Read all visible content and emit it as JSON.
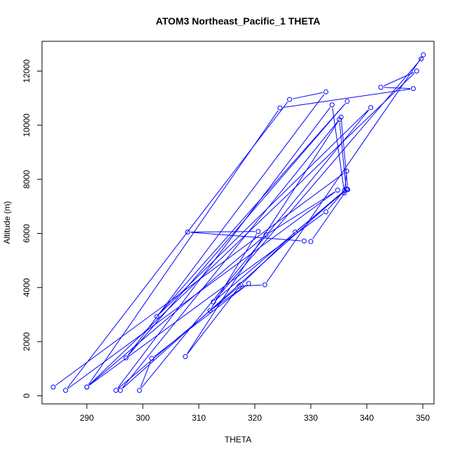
{
  "chart_data": {
    "type": "line",
    "title": "ATOM3 Northeast_Pacific_1 THETA",
    "xlabel": "THETA",
    "ylabel": "Altitude (m)",
    "xlim": [
      282,
      352
    ],
    "ylim": [
      -300,
      13100
    ],
    "xticks": [
      290,
      300,
      310,
      320,
      330,
      340,
      350
    ],
    "yticks": [
      0,
      2000,
      4000,
      6000,
      8000,
      10000,
      12000
    ],
    "grid": false,
    "legend": "none",
    "colors": {
      "series": "#0000ff",
      "axis": "#000000"
    },
    "series": [
      {
        "x": [
          284.0,
          336.4,
          336.0,
          333.8,
          295.2,
          317.2,
          321.8,
          350.1,
          349.7,
          312.6,
          336.0,
          296.0,
          335.1,
          336.3,
          332.7,
          290.0,
          348.9,
          342.5,
          348.3,
          324.5,
          290.0,
          322.0,
          334.8,
          286.2,
          326.2,
          332.7,
          297.0,
          336.5,
          302.5,
          340.7,
          299.4,
          301.6,
          318.9,
          312.0,
          320.6,
          308.0,
          328.8,
          330.0,
          336.5,
          327.2,
          317.5,
          307.6,
          335.4,
          336.6
        ],
        "y": [
          320,
          8300,
          7500,
          10750,
          200,
          4050,
          4100,
          12600,
          12450,
          3470,
          7580,
          200,
          10210,
          7650,
          6800,
          320,
          12000,
          11400,
          11350,
          10640,
          320,
          5950,
          7600,
          200,
          10950,
          11230,
          1400,
          10880,
          2930,
          10650,
          200,
          1380,
          4150,
          3150,
          6070,
          6050,
          5720,
          5700,
          7630,
          6050,
          4100,
          1450,
          10300,
          7620
        ]
      }
    ]
  }
}
